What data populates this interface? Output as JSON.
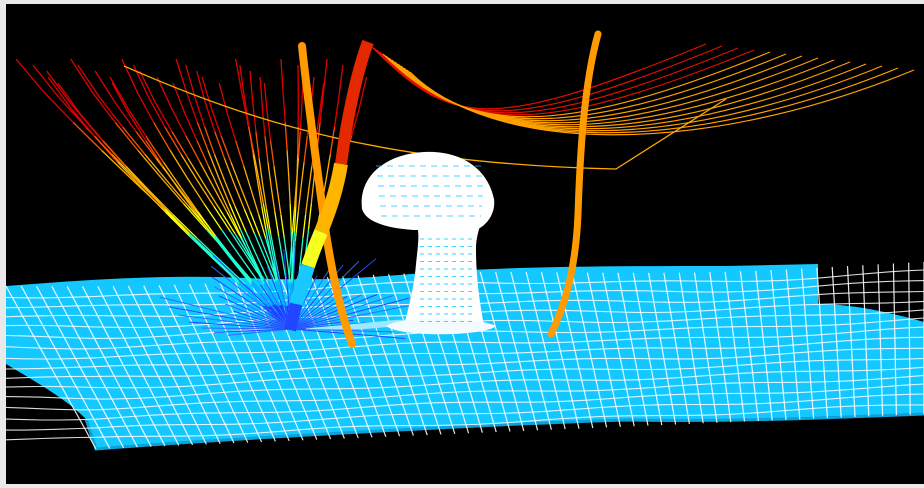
{
  "scene": {
    "background": "#000000",
    "frame_color": "#e9e9e9",
    "surface_color": "#14c8ff",
    "surface_grid_color": "#ffffff",
    "object_color": "#ffffff",
    "ribbon_color": "#ff9a00",
    "streamline_palette": [
      "#1a3cff",
      "#00b4ff",
      "#20ffd0",
      "#ffff00",
      "#ffb000",
      "#ff5000",
      "#e00000"
    ]
  }
}
